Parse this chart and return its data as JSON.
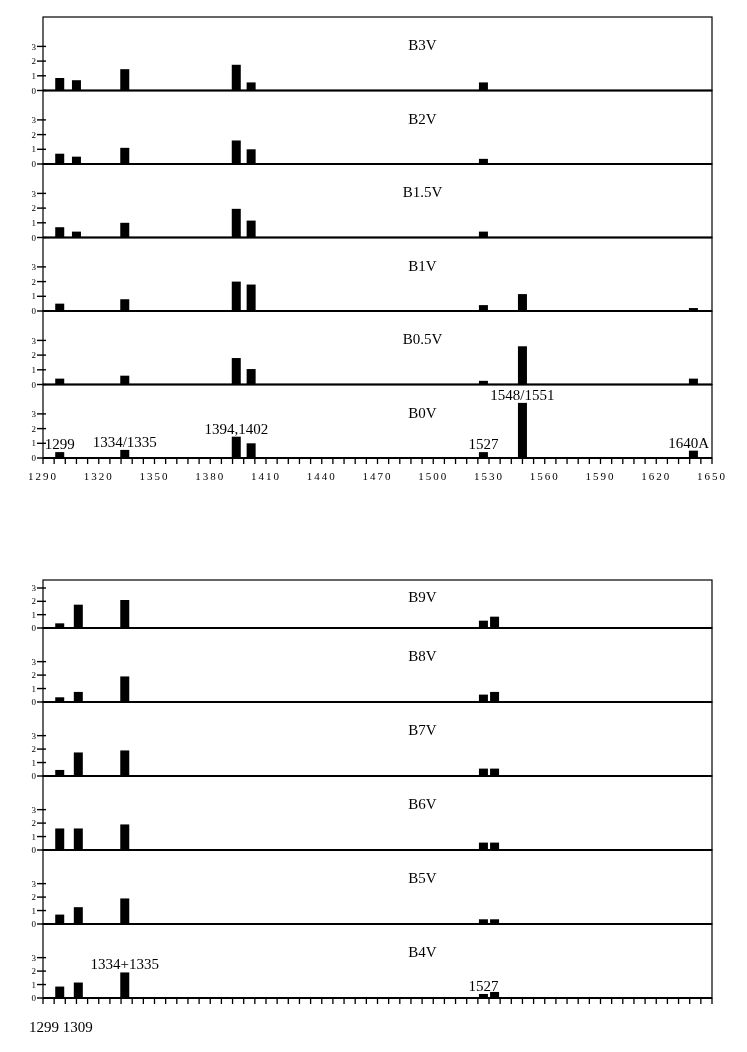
{
  "chart_data": [
    {
      "type": "bar",
      "title": "B3V",
      "x": [
        1299,
        1308,
        1334,
        1394,
        1402,
        1527
      ],
      "values": [
        0.85,
        0.7,
        1.45,
        1.75,
        0.55,
        0.55
      ],
      "color": "#000000",
      "xlim": [
        1290,
        1650
      ],
      "ylim": [
        0,
        5
      ],
      "yticks": [
        0,
        1,
        2,
        3
      ],
      "tick_labels": "y"
    },
    {
      "type": "bar",
      "title": "B2V",
      "x": [
        1299,
        1308,
        1334,
        1394,
        1402,
        1527
      ],
      "values": [
        0.7,
        0.5,
        1.1,
        1.6,
        1.0,
        0.35
      ],
      "color": "#000000",
      "xlim": [
        1290,
        1650
      ],
      "ylim": [
        0,
        5
      ],
      "yticks": [
        0,
        1,
        2,
        3
      ],
      "tick_labels": "y"
    },
    {
      "type": "bar",
      "title": "B1.5V",
      "x": [
        1299,
        1308,
        1334,
        1394,
        1402,
        1527
      ],
      "values": [
        0.7,
        0.4,
        1.0,
        1.95,
        1.15,
        0.4
      ],
      "color": "#000000",
      "xlim": [
        1290,
        1650
      ],
      "ylim": [
        0,
        5
      ],
      "yticks": [
        0,
        1,
        2,
        3
      ],
      "tick_labels": "y"
    },
    {
      "type": "bar",
      "title": "B1V",
      "x": [
        1299,
        1334,
        1394,
        1402,
        1527,
        1548,
        1640
      ],
      "values": [
        0.5,
        0.8,
        2.0,
        1.8,
        0.4,
        1.15,
        0.2
      ],
      "color": "#000000",
      "xlim": [
        1290,
        1650
      ],
      "ylim": [
        0,
        5
      ],
      "yticks": [
        0,
        1,
        2,
        3
      ],
      "tick_labels": "y"
    },
    {
      "type": "bar",
      "title": "B0.5V",
      "x": [
        1299,
        1334,
        1394,
        1402,
        1527,
        1548,
        1640
      ],
      "values": [
        0.4,
        0.6,
        1.8,
        1.05,
        0.25,
        2.6,
        0.4
      ],
      "color": "#000000",
      "xlim": [
        1290,
        1650
      ],
      "ylim": [
        0,
        5
      ],
      "yticks": [
        0,
        1,
        2,
        3
      ],
      "tick_labels": "y"
    },
    {
      "type": "bar",
      "title": "B0V",
      "x": [
        1299,
        1334,
        1394,
        1402,
        1527,
        1548,
        1640
      ],
      "values": [
        0.4,
        0.55,
        1.45,
        1.0,
        0.4,
        3.75,
        0.5
      ],
      "color": "#000000",
      "xlim": [
        1290,
        1650
      ],
      "ylim": [
        0,
        5
      ],
      "yticks": [
        0,
        1,
        2,
        3
      ],
      "xticks": [
        1290,
        {
          "value": 1296,
          "label": null
        },
        {
          "value": 1302,
          "label": null
        },
        {
          "value": 1308,
          "label": null
        },
        {
          "value": 1314,
          "label": null
        },
        1320,
        {
          "value": 1326,
          "label": null
        },
        {
          "value": 1332,
          "label": null
        },
        {
          "value": 1338,
          "label": null
        },
        {
          "value": 1344,
          "label": null
        },
        1350,
        {
          "value": 1356,
          "label": null
        },
        {
          "value": 1362,
          "label": null
        },
        {
          "value": 1368,
          "label": null
        },
        {
          "value": 1374,
          "label": null
        },
        1380,
        {
          "value": 1386,
          "label": null
        },
        {
          "value": 1392,
          "label": null
        },
        {
          "value": 1398,
          "label": null
        },
        {
          "value": 1404,
          "label": null
        },
        1410,
        {
          "value": 1416,
          "label": null
        },
        {
          "value": 1422,
          "label": null
        },
        {
          "value": 1428,
          "label": null
        },
        {
          "value": 1434,
          "label": null
        },
        1440,
        {
          "value": 1446,
          "label": null
        },
        {
          "value": 1452,
          "label": null
        },
        {
          "value": 1458,
          "label": null
        },
        {
          "value": 1464,
          "label": null
        },
        1470,
        {
          "value": 1476,
          "label": null
        },
        {
          "value": 1482,
          "label": null
        },
        {
          "value": 1488,
          "label": null
        },
        {
          "value": 1494,
          "label": null
        },
        1500,
        {
          "value": 1506,
          "label": null
        },
        {
          "value": 1512,
          "label": null
        },
        {
          "value": 1518,
          "label": null
        },
        {
          "value": 1524,
          "label": null
        },
        1530,
        {
          "value": 1536,
          "label": null
        },
        {
          "value": 1542,
          "label": null
        },
        {
          "value": 1548,
          "label": null
        },
        {
          "value": 1554,
          "label": null
        },
        1560,
        {
          "value": 1566,
          "label": null
        },
        {
          "value": 1572,
          "label": null
        },
        {
          "value": 1578,
          "label": null
        },
        {
          "value": 1584,
          "label": null
        },
        1590,
        {
          "value": 1596,
          "label": null
        },
        {
          "value": 1602,
          "label": null
        },
        {
          "value": 1608,
          "label": null
        },
        {
          "value": 1614,
          "label": null
        },
        1620,
        {
          "value": 1626,
          "label": null
        },
        {
          "value": 1632,
          "label": null
        },
        {
          "value": 1638,
          "label": null
        },
        {
          "value": 1644,
          "label": null
        },
        1650
      ],
      "annotations": [
        {
          "text": "1299",
          "x": 1299,
          "y": 0.4
        },
        {
          "text": "1334/1335",
          "x": 1334,
          "y": 0.55
        },
        {
          "text": "1394,1402",
          "x": 1394,
          "y": 1.45
        },
        {
          "text": "1527",
          "x": 1527,
          "y": 0.4
        },
        {
          "text": "1548/1551",
          "x": 1548,
          "y": 3.75
        },
        {
          "text": "1640A",
          "x": 1640,
          "y": 0.5
        }
      ]
    },
    {
      "type": "bar",
      "title": "B9V",
      "x": [
        1299,
        1309,
        1334,
        1527,
        1533
      ],
      "values": [
        0.35,
        1.75,
        2.1,
        0.55,
        0.85
      ],
      "color": "#000000",
      "xlim": [
        1290,
        1650
      ],
      "ylim": [
        0,
        3.6
      ],
      "yticks": [
        0,
        1,
        2,
        3
      ],
      "tick_labels": "y"
    },
    {
      "type": "bar",
      "title": "B8V",
      "x": [
        1299,
        1309,
        1334,
        1527,
        1533
      ],
      "values": [
        0.35,
        0.75,
        1.9,
        0.55,
        0.75
      ],
      "color": "#000000",
      "xlim": [
        1290,
        1650
      ],
      "ylim": [
        0,
        5.5
      ],
      "yticks": [
        0,
        1,
        2,
        3
      ],
      "tick_labels": "y"
    },
    {
      "type": "bar",
      "title": "B7V",
      "x": [
        1299,
        1309,
        1334,
        1527,
        1533
      ],
      "values": [
        0.45,
        1.75,
        1.9,
        0.55,
        0.55
      ],
      "color": "#000000",
      "xlim": [
        1290,
        1650
      ],
      "ylim": [
        0,
        5.5
      ],
      "yticks": [
        0,
        1,
        2,
        3
      ],
      "tick_labels": "y"
    },
    {
      "type": "bar",
      "title": "B6V",
      "x": [
        1299,
        1309,
        1334,
        1527,
        1533
      ],
      "values": [
        1.6,
        1.6,
        1.9,
        0.55,
        0.55
      ],
      "color": "#000000",
      "xlim": [
        1290,
        1650
      ],
      "ylim": [
        0,
        5.5
      ],
      "yticks": [
        0,
        1,
        2,
        3
      ],
      "tick_labels": "y"
    },
    {
      "type": "bar",
      "title": "B5V",
      "x": [
        1299,
        1309,
        1334,
        1527,
        1533
      ],
      "values": [
        0.7,
        1.25,
        1.9,
        0.35,
        0.35
      ],
      "color": "#000000",
      "xlim": [
        1290,
        1650
      ],
      "ylim": [
        0,
        5.5
      ],
      "yticks": [
        0,
        1,
        2,
        3
      ],
      "tick_labels": "y"
    },
    {
      "type": "bar",
      "title": "B4V",
      "x": [
        1299,
        1309,
        1334,
        1527,
        1533
      ],
      "values": [
        0.85,
        1.15,
        1.9,
        0.3,
        0.45
      ],
      "color": "#000000",
      "xlim": [
        1290,
        1650
      ],
      "ylim": [
        0,
        5.5
      ],
      "yticks": [
        0,
        1,
        2,
        3
      ],
      "tick_labels": "y",
      "xticks": [
        {
          "value": 1290,
          "label": null
        },
        {
          "value": 1296,
          "label": null
        },
        {
          "value": 1302,
          "label": null
        },
        {
          "value": 1308,
          "label": null
        },
        {
          "value": 1314,
          "label": null
        },
        {
          "value": 1320,
          "label": null
        },
        {
          "value": 1326,
          "label": null
        },
        {
          "value": 1332,
          "label": null
        },
        {
          "value": 1338,
          "label": null
        },
        {
          "value": 1344,
          "label": null
        },
        {
          "value": 1350,
          "label": null
        },
        {
          "value": 1356,
          "label": null
        },
        {
          "value": 1362,
          "label": null
        },
        {
          "value": 1368,
          "label": null
        },
        {
          "value": 1374,
          "label": null
        },
        {
          "value": 1380,
          "label": null
        },
        {
          "value": 1386,
          "label": null
        },
        {
          "value": 1392,
          "label": null
        },
        {
          "value": 1398,
          "label": null
        },
        {
          "value": 1404,
          "label": null
        },
        {
          "value": 1410,
          "label": null
        },
        {
          "value": 1416,
          "label": null
        },
        {
          "value": 1422,
          "label": null
        },
        {
          "value": 1428,
          "label": null
        },
        {
          "value": 1434,
          "label": null
        },
        {
          "value": 1440,
          "label": null
        },
        {
          "value": 1446,
          "label": null
        },
        {
          "value": 1452,
          "label": null
        },
        {
          "value": 1458,
          "label": null
        },
        {
          "value": 1464,
          "label": null
        },
        {
          "value": 1470,
          "label": null
        },
        {
          "value": 1476,
          "label": null
        },
        {
          "value": 1482,
          "label": null
        },
        {
          "value": 1488,
          "label": null
        },
        {
          "value": 1494,
          "label": null
        },
        {
          "value": 1500,
          "label": null
        },
        {
          "value": 1506,
          "label": null
        },
        {
          "value": 1512,
          "label": null
        },
        {
          "value": 1518,
          "label": null
        },
        {
          "value": 1524,
          "label": null
        },
        {
          "value": 1530,
          "label": null
        },
        {
          "value": 1536,
          "label": null
        },
        {
          "value": 1542,
          "label": null
        },
        {
          "value": 1548,
          "label": null
        },
        {
          "value": 1554,
          "label": null
        },
        {
          "value": 1560,
          "label": null
        },
        {
          "value": 1566,
          "label": null
        },
        {
          "value": 1572,
          "label": null
        },
        {
          "value": 1578,
          "label": null
        },
        {
          "value": 1584,
          "label": null
        },
        {
          "value": 1590,
          "label": null
        },
        {
          "value": 1596,
          "label": null
        },
        {
          "value": 1602,
          "label": null
        },
        {
          "value": 1608,
          "label": null
        },
        {
          "value": 1614,
          "label": null
        },
        {
          "value": 1620,
          "label": null
        },
        {
          "value": 1626,
          "label": null
        },
        {
          "value": 1632,
          "label": null
        },
        {
          "value": 1638,
          "label": null
        },
        {
          "value": 1644,
          "label": null
        },
        {
          "value": 1650,
          "label": null
        }
      ],
      "annotations": [
        {
          "text": "1334+1335",
          "x": 1334,
          "y": 1.9
        },
        {
          "text": "1527",
          "x": 1527,
          "y": 0.3
        },
        "1299 1309"
      ]
    }
  ]
}
